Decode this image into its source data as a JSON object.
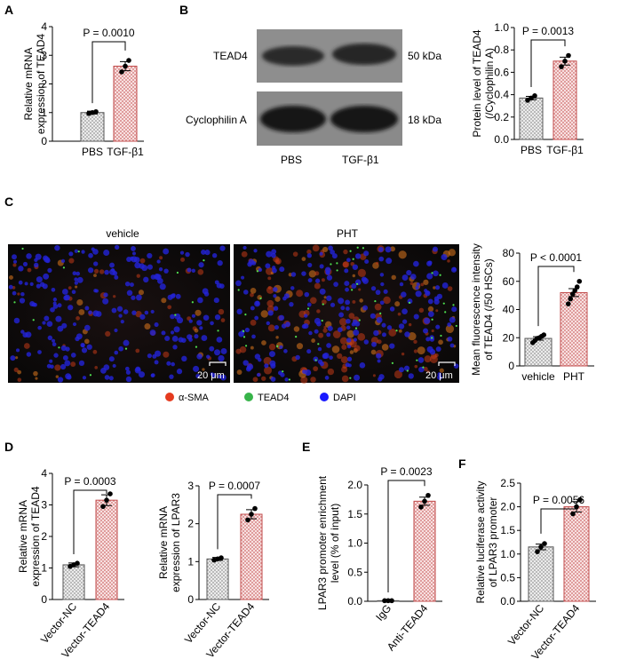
{
  "colors": {
    "control_fill": "#e6e6e6",
    "treatment_fill": "#f3d2d2",
    "treatment_stroke": "#c04a4a",
    "dot": "#000000",
    "red_channel": "#e53b1f",
    "green_channel": "#38b44a",
    "blue_channel": "#1a1aff"
  },
  "panels": {
    "A": {
      "label": "A"
    },
    "B": {
      "label": "B",
      "blot_bands": [
        "TEAD4",
        "Cyclophilin A"
      ],
      "blot_sizes": [
        "50 kDa",
        "18 kDa"
      ],
      "blot_lanes": [
        "PBS",
        "TGF-β1"
      ]
    },
    "C": {
      "label": "C",
      "image_titles": [
        "vehicle",
        "PHT"
      ],
      "scale_bar": "20 μm",
      "legend": [
        {
          "name": "α-SMA",
          "color": "#e53b1f"
        },
        {
          "name": "TEAD4",
          "color": "#38b44a"
        },
        {
          "name": "DAPI",
          "color": "#1a1aff"
        }
      ]
    },
    "D": {
      "label": "D"
    },
    "E": {
      "label": "E"
    },
    "F": {
      "label": "F"
    }
  },
  "chart_data": [
    {
      "id": "A",
      "type": "bar",
      "categories": [
        "PBS",
        "TGF-β1"
      ],
      "values": [
        1.0,
        2.62
      ],
      "errors": [
        0.05,
        0.16
      ],
      "points": [
        [
          0.97,
          1.0,
          1.03
        ],
        [
          2.42,
          2.62,
          2.82
        ]
      ],
      "ylabel": [
        "Relative mRNA",
        "expression of TEAD4"
      ],
      "ylim": [
        0,
        4
      ],
      "yticks": [
        "0",
        "1",
        "2",
        "3",
        "4"
      ],
      "annotation": "P = 0.0010",
      "grid": false
    },
    {
      "id": "B",
      "type": "bar",
      "categories": [
        "PBS",
        "TGF-β1"
      ],
      "values": [
        0.37,
        0.7
      ],
      "errors": [
        0.015,
        0.035
      ],
      "points": [
        [
          0.35,
          0.37,
          0.39
        ],
        [
          0.65,
          0.7,
          0.75
        ]
      ],
      "ylabel": [
        "Protein level of TEAD4",
        "(/Cyclophilin A)"
      ],
      "ylim": [
        0,
        1.0
      ],
      "yticks": [
        "0.0",
        "0.2",
        "0.4",
        "0.6",
        "0.8",
        "1.0"
      ],
      "annotation": "P = 0.0013",
      "grid": false
    },
    {
      "id": "C",
      "type": "bar",
      "categories": [
        "vehicle",
        "PHT"
      ],
      "values": [
        19.5,
        52.0
      ],
      "errors": [
        1.2,
        2.8
      ],
      "points": [
        [
          16.5,
          18,
          19.5,
          20,
          21,
          22
        ],
        [
          44,
          47.5,
          51,
          53.5,
          56,
          60
        ]
      ],
      "ylabel": [
        "Mean fluorescence intensity",
        "of TEAD4 (/50 HSCs)"
      ],
      "ylim": [
        0,
        80
      ],
      "yticks": [
        "0",
        "20",
        "40",
        "60",
        "80"
      ],
      "annotation": "P < 0.0001",
      "grid": false
    },
    {
      "id": "D1",
      "type": "bar",
      "categories": [
        "Vector-NC",
        "Vector-TEAD4"
      ],
      "values": [
        1.1,
        3.15
      ],
      "errors": [
        0.06,
        0.17
      ],
      "points": [
        [
          1.05,
          1.1,
          1.15
        ],
        [
          2.95,
          3.15,
          3.35
        ]
      ],
      "ylabel": [
        "Relative mRNA",
        "expression of TEAD4"
      ],
      "ylim": [
        0,
        4
      ],
      "yticks": [
        "0",
        "1",
        "2",
        "3",
        "4"
      ],
      "annotation": "P = 0.0003",
      "grid": false
    },
    {
      "id": "D2",
      "type": "bar",
      "categories": [
        "Vector-NC",
        "Vector-TEAD4"
      ],
      "values": [
        1.07,
        2.25
      ],
      "errors": [
        0.04,
        0.12
      ],
      "points": [
        [
          1.04,
          1.07,
          1.1
        ],
        [
          2.1,
          2.25,
          2.4
        ]
      ],
      "ylabel": [
        "Relative mRNA",
        "expression of LPAR3"
      ],
      "ylim": [
        0,
        3
      ],
      "yticks": [
        "0",
        "1",
        "2",
        "3"
      ],
      "annotation": "P = 0.0007",
      "grid": false
    },
    {
      "id": "E",
      "type": "bar",
      "categories": [
        "IgG",
        "Anti-TEAD4"
      ],
      "values": [
        0.01,
        1.72
      ],
      "errors": [
        0.005,
        0.07
      ],
      "points": [
        [
          0.01,
          0.01,
          0.01
        ],
        [
          1.62,
          1.72,
          1.82
        ]
      ],
      "ylabel": [
        "LPAR3 promoter enrichment",
        "level (% of input)"
      ],
      "ylim": [
        0,
        2.0
      ],
      "yticks": [
        "0.0",
        "0.5",
        "1.0",
        "1.5",
        "2.0"
      ],
      "annotation": "P = 0.0023",
      "grid": false
    },
    {
      "id": "F",
      "type": "bar",
      "categories": [
        "Vector-NC",
        "Vector-TEAD4"
      ],
      "values": [
        1.15,
        2.0
      ],
      "errors": [
        0.06,
        0.11
      ],
      "points": [
        [
          1.05,
          1.15,
          1.22
        ],
        [
          1.85,
          2.0,
          2.15
        ]
      ],
      "ylabel": [
        "Relative luciferase activity",
        "of LPAR3 promoter"
      ],
      "ylim": [
        0,
        2.5
      ],
      "yticks": [
        "0.0",
        "0.5",
        "1.0",
        "1.5",
        "2.0",
        "2.5"
      ],
      "annotation": "P = 0.0056",
      "grid": false
    }
  ]
}
